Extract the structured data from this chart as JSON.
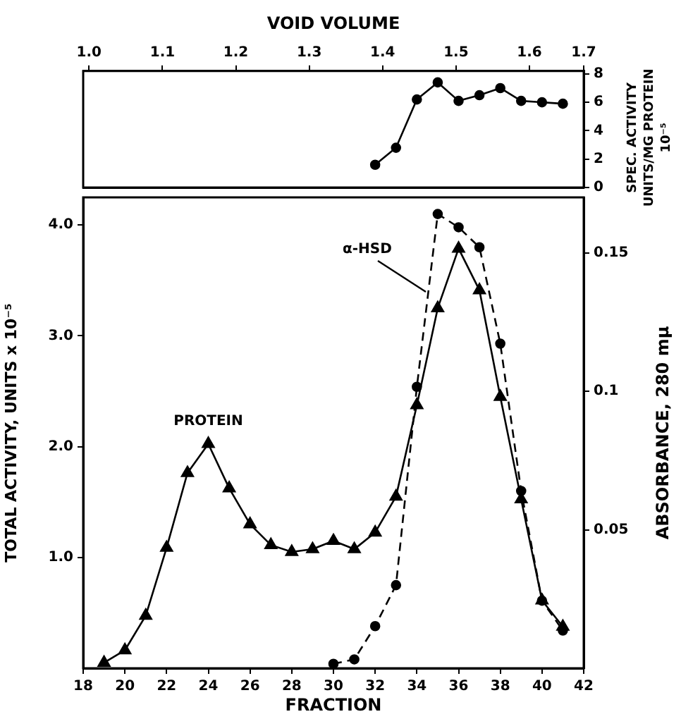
{
  "chart_data": [
    {
      "type": "line",
      "x2label": "VOID VOLUME",
      "y2label": "SPEC. ACTIVITY\nUNITS/MG PROTEIN\n10⁻⁵",
      "xlim": [
        18,
        42
      ],
      "x2lim": [
        0.992,
        1.674
      ],
      "x2ticks": [
        {
          "value": 1,
          "label": "1.0"
        },
        1.1,
        1.2,
        1.3,
        1.4,
        1.5,
        1.6,
        {
          "value": 1.674,
          "label": "1.7"
        }
      ],
      "y2lim": [
        0,
        8.2
      ],
      "y2ticks": [
        0,
        2,
        4,
        6,
        8
      ],
      "tick_labels": "y",
      "grid": false,
      "legend": false,
      "series": [
        {
          "color": "#000000",
          "axis": "y2",
          "marker": "circle",
          "line_style": "solid",
          "x": [
            32,
            33,
            34,
            35,
            36,
            37,
            38,
            39,
            40,
            41
          ],
          "values": [
            1.6,
            2.8,
            6.2,
            7.4,
            6.1,
            6.5,
            7.0,
            6.1,
            6.0,
            5.9
          ]
        }
      ]
    },
    {
      "type": "line",
      "xlabel": "FRACTION",
      "ylabel": "TOTAL ACTIVITY, UNITS x 10⁻⁵",
      "y2label": "ABSORBANCE, 280 mμ",
      "xlim": [
        18,
        42
      ],
      "xticks": [
        18,
        20,
        22,
        24,
        26,
        28,
        30,
        32,
        34,
        36,
        38,
        40,
        42
      ],
      "ylim": [
        0,
        4.25
      ],
      "yticks": [
        {
          "value": 1,
          "label": "1.0"
        },
        {
          "value": 2,
          "label": "2.0"
        },
        {
          "value": 3,
          "label": "3.0"
        },
        {
          "value": 4,
          "label": "4.0"
        }
      ],
      "y2lim": [
        0,
        0.17
      ],
      "y2ticks": [
        0.05,
        0.1,
        0.15
      ],
      "grid": false,
      "legend": false,
      "series": [
        {
          "name": "PROTEIN",
          "color": "#000000",
          "axis": "y2",
          "marker": "triangle",
          "line_style": "solid",
          "x": [
            19,
            20,
            21,
            22,
            23,
            24,
            25,
            26,
            27,
            28,
            29,
            30,
            31,
            32,
            33,
            34,
            35,
            36,
            37,
            38,
            39,
            40,
            41
          ],
          "values": [
            0.002,
            0.0065,
            0.019,
            0.0435,
            0.0705,
            0.081,
            0.065,
            0.052,
            0.0445,
            0.042,
            0.043,
            0.046,
            0.043,
            0.049,
            0.062,
            0.095,
            0.13,
            0.1515,
            0.1365,
            0.098,
            0.061,
            0.0245,
            0.015
          ]
        },
        {
          "name": "α-HSD",
          "color": "#000000",
          "axis": "y",
          "marker": "circle",
          "line_style": "dashed",
          "x": [
            30,
            31,
            32,
            33,
            34,
            35,
            36,
            37,
            38,
            39,
            40,
            41
          ],
          "values": [
            0.04,
            0.08,
            0.38,
            0.75,
            2.54,
            4.1,
            3.98,
            3.8,
            2.93,
            1.6,
            0.61,
            0.34
          ]
        }
      ]
    }
  ]
}
